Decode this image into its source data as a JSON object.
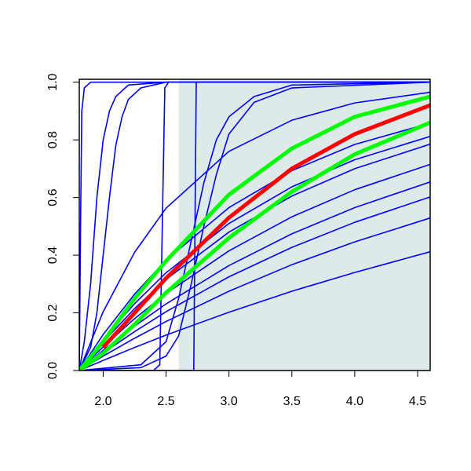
{
  "chart_data": {
    "type": "line",
    "xlim": [
      1.81,
      4.6
    ],
    "ylim": [
      0,
      1.01
    ],
    "xticks": [
      {
        "value": 2,
        "label": "2.0"
      },
      {
        "value": 2.5,
        "label": "2.5"
      },
      {
        "value": 3,
        "label": "3.0"
      },
      {
        "value": 3.5,
        "label": "3.5"
      },
      {
        "value": 4,
        "label": "4.0"
      },
      {
        "value": 4.5,
        "label": "4.5"
      }
    ],
    "yticks": [
      {
        "value": 0,
        "label": "0.0"
      },
      {
        "value": 0.2,
        "label": "0.2"
      },
      {
        "value": 0.4,
        "label": "0.4"
      },
      {
        "value": 0.6,
        "label": "0.6"
      },
      {
        "value": 0.8,
        "label": "0.8"
      },
      {
        "value": 1,
        "label": "1.0"
      }
    ],
    "shaded_region": {
      "xmin": 2.6,
      "xmax": 4.6,
      "color": "#deeaea"
    },
    "series": [
      {
        "color": "#0000ff",
        "x": [
          1.81,
          2.0,
          2.25,
          2.5,
          3.0,
          3.5,
          4.0,
          4.6
        ],
        "values": [
          0,
          0.035,
          0.08,
          0.123,
          0.202,
          0.275,
          0.34,
          0.412
        ]
      },
      {
        "color": "#0000ff",
        "x": [
          1.81,
          2.0,
          2.25,
          2.5,
          3.0,
          3.5,
          4.0,
          4.6
        ],
        "values": [
          0,
          0.05,
          0.112,
          0.17,
          0.275,
          0.367,
          0.446,
          0.529
        ]
      },
      {
        "color": "#0000ff",
        "x": [
          1.81,
          2.0,
          2.25,
          2.5,
          3.0,
          3.5,
          4.0,
          4.6
        ],
        "values": [
          0,
          0.061,
          0.135,
          0.204,
          0.325,
          0.427,
          0.514,
          0.602
        ]
      },
      {
        "color": "#0000ff",
        "x": [
          1.81,
          2.0,
          2.25,
          2.5,
          3.0,
          3.5,
          4.0,
          4.6
        ],
        "values": [
          0,
          0.07,
          0.154,
          0.231,
          0.364,
          0.474,
          0.565,
          0.654
        ]
      },
      {
        "color": "#0000ff",
        "x": [
          1.81,
          2.0,
          2.25,
          2.5,
          3.0,
          3.5,
          4.0,
          4.6
        ],
        "values": [
          0,
          0.082,
          0.18,
          0.267,
          0.415,
          0.533,
          0.627,
          0.715
        ]
      },
      {
        "color": "#0000ff",
        "x": [
          1.81,
          2.0,
          2.25,
          2.5,
          3.0,
          3.5,
          4.0,
          4.6
        ],
        "values": [
          0,
          0.099,
          0.215,
          0.316,
          0.48,
          0.605,
          0.7,
          0.785
        ]
      },
      {
        "color": "#0000ff",
        "x": [
          1.81,
          2.0,
          2.25,
          2.5,
          3.0,
          3.5,
          4.0,
          4.6
        ],
        "values": [
          0,
          0.108,
          0.232,
          0.339,
          0.51,
          0.637,
          0.731,
          0.812
        ]
      },
      {
        "color": "#0000ff",
        "x": [
          1.81,
          2.0,
          2.25,
          2.5,
          3.0,
          3.5,
          4.0,
          4.6
        ],
        "values": [
          0,
          0.125,
          0.265,
          0.383,
          0.565,
          0.693,
          0.784,
          0.858
        ]
      },
      {
        "color": "#0000ff",
        "x": [
          1.81,
          2.0,
          2.25,
          2.5,
          3.0,
          3.5,
          4.0,
          4.6
        ],
        "values": [
          0,
          0.204,
          0.41,
          0.563,
          0.76,
          0.868,
          0.928,
          0.965
        ]
      },
      {
        "color": "#0000ff",
        "x": [
          1.81,
          1.82,
          1.83,
          1.85,
          1.9,
          4.6
        ],
        "values": [
          0,
          0.5,
          0.9,
          0.98,
          1,
          1
        ]
      },
      {
        "color": "#0000ff",
        "x": [
          1.81,
          1.85,
          1.9,
          1.95,
          2.0,
          2.05,
          2.1,
          2.2,
          2.5,
          4.6
        ],
        "values": [
          0,
          0.1,
          0.3,
          0.6,
          0.8,
          0.9,
          0.95,
          0.99,
          1,
          1
        ]
      },
      {
        "color": "#0000ff",
        "x": [
          1.81,
          1.9,
          1.95,
          2.0,
          2.05,
          2.1,
          2.15,
          2.2,
          2.3,
          2.5,
          4.6
        ],
        "values": [
          0,
          0.08,
          0.2,
          0.4,
          0.6,
          0.78,
          0.88,
          0.94,
          0.98,
          1,
          1
        ]
      },
      {
        "color": "#0000ff",
        "x": [
          1.81,
          2.4,
          2.45,
          2.47,
          2.49,
          2.52,
          4.6
        ],
        "values": [
          0,
          0,
          0.02,
          0.5,
          0.98,
          1,
          1
        ]
      },
      {
        "color": "#0000ff",
        "x": [
          1.81,
          2.72,
          2.73,
          2.74,
          4.6
        ],
        "values": [
          0,
          0,
          0.5,
          1,
          1
        ]
      },
      {
        "color": "#0000ff",
        "x": [
          1.81,
          2.3,
          2.5,
          2.6,
          2.7,
          2.8,
          2.9,
          3.0,
          3.2,
          3.5,
          4.6
        ],
        "values": [
          0,
          0.02,
          0.1,
          0.25,
          0.45,
          0.65,
          0.8,
          0.88,
          0.95,
          0.99,
          1
        ]
      },
      {
        "color": "#0000ff",
        "x": [
          1.81,
          2.3,
          2.5,
          2.6,
          2.7,
          2.8,
          2.9,
          3.0,
          3.2,
          3.5,
          4.6
        ],
        "values": [
          0,
          0.01,
          0.05,
          0.12,
          0.3,
          0.5,
          0.68,
          0.82,
          0.93,
          0.98,
          1
        ]
      },
      {
        "color": "#00ff00",
        "x": [
          1.81,
          2.0,
          2.25,
          2.5,
          3.0,
          3.5,
          4.0,
          4.6
        ],
        "values": [
          0,
          0.1,
          0.25,
          0.38,
          0.61,
          0.77,
          0.88,
          0.95
        ]
      },
      {
        "color": "#00ff00",
        "x": [
          1.81,
          2.0,
          2.25,
          2.5,
          3.0,
          3.5,
          4.0,
          4.6
        ],
        "values": [
          0,
          0.06,
          0.16,
          0.27,
          0.46,
          0.62,
          0.75,
          0.86
        ]
      },
      {
        "color": "#ff0000",
        "x": [
          2.0,
          2.25,
          2.5,
          3.0,
          3.5,
          4.0,
          4.6
        ],
        "values": [
          0.08,
          0.2,
          0.32,
          0.53,
          0.7,
          0.82,
          0.92
        ]
      }
    ]
  }
}
